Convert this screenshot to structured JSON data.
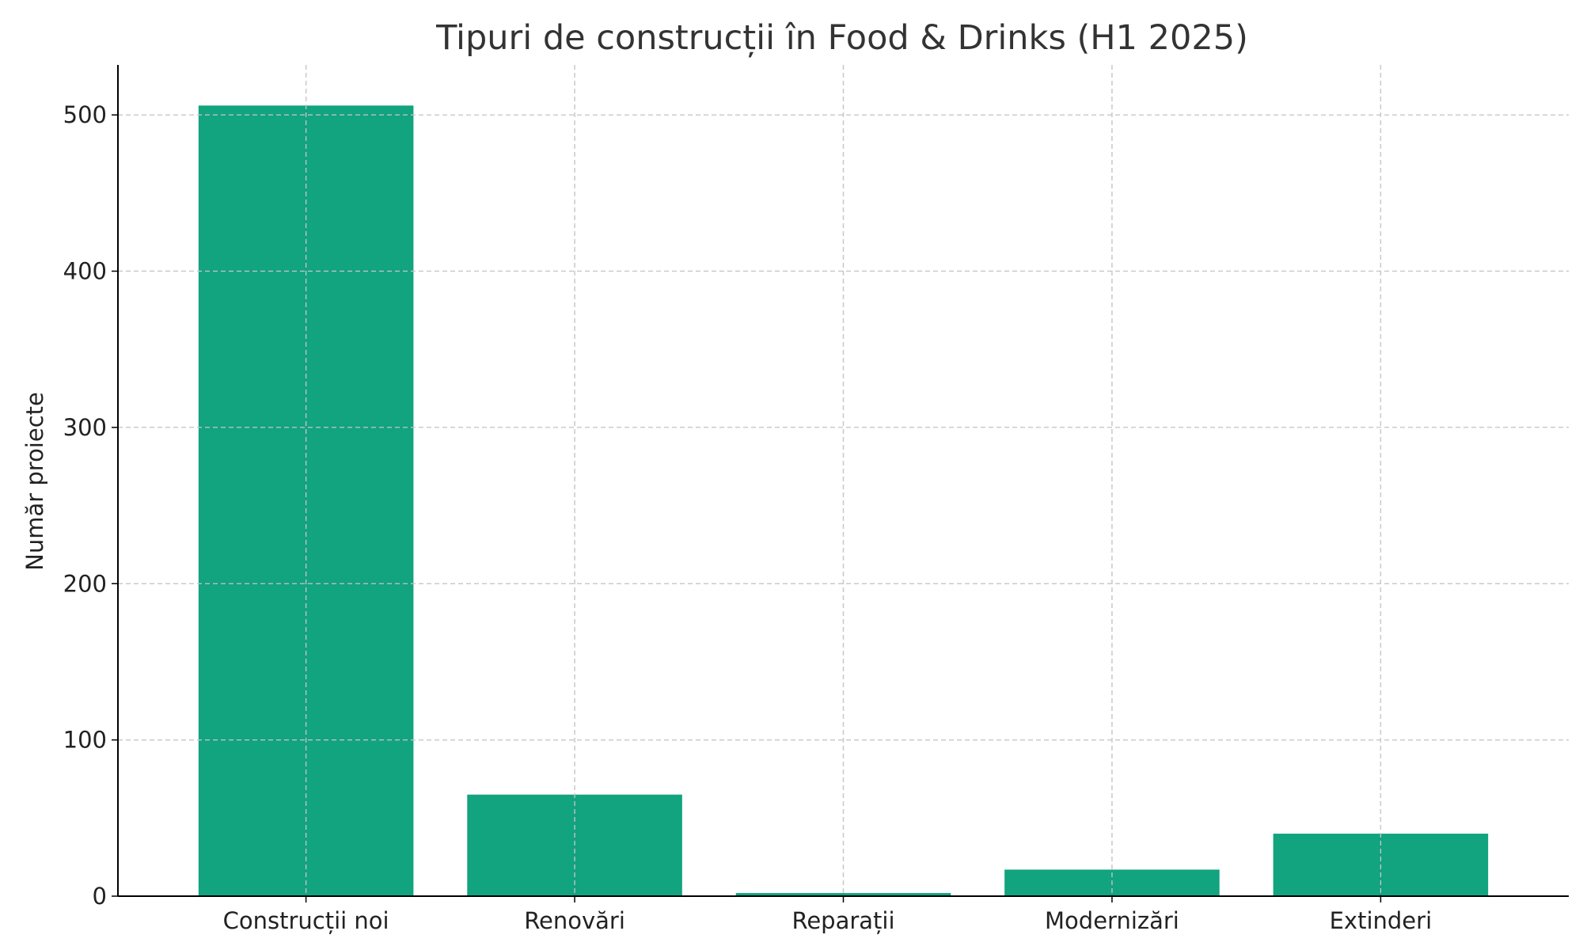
{
  "chart_data": {
    "type": "bar",
    "title": "Tipuri de construcții în Food & Drinks (H1 2025)",
    "xlabel": "",
    "ylabel": "Număr proiecte",
    "categories": [
      "Construcții noi",
      "Renovări",
      "Reparații",
      "Modernizări",
      "Extinderi"
    ],
    "values": [
      506,
      65,
      2,
      17,
      40
    ],
    "ylim": [
      0,
      532
    ],
    "yticks": [
      0,
      100,
      200,
      300,
      400,
      500
    ],
    "grid": true,
    "bar_color": "#12a37f"
  }
}
